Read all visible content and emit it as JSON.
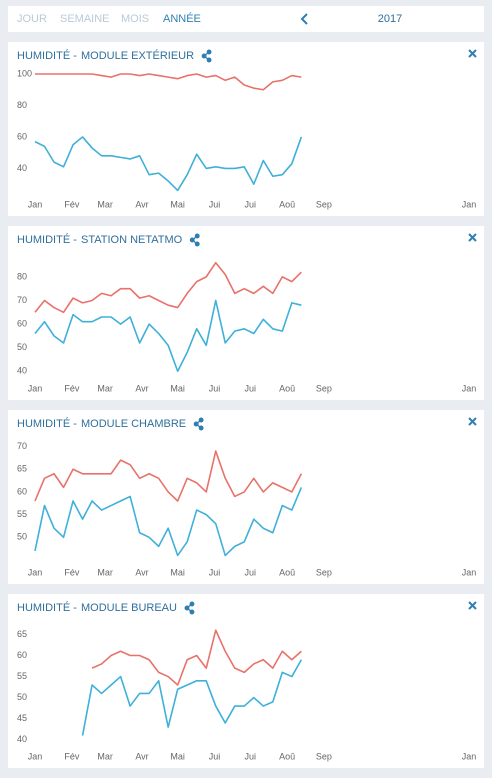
{
  "header": {
    "tabs": [
      "JOUR",
      "SEMAINE",
      "MOIS",
      "ANNÉE"
    ],
    "active_tab": 3,
    "year": "2017"
  },
  "chart_data": [
    {
      "type": "line",
      "title": "HUMIDITÉ -",
      "subtitle": "MODULE EXTÉRIEUR",
      "x": [
        0,
        8,
        16,
        24,
        32,
        40,
        48,
        56,
        64,
        72,
        80,
        88,
        96,
        104,
        112,
        120,
        128,
        136,
        144,
        152,
        160,
        168,
        176,
        184,
        192,
        200,
        208,
        216,
        224
      ],
      "xlim": [
        0,
        365
      ],
      "xticks": [
        {
          "value": 0,
          "label": "Jan"
        },
        {
          "value": 31,
          "label": "Fév"
        },
        {
          "value": 59,
          "label": "Mar"
        },
        {
          "value": 90,
          "label": "Avr"
        },
        {
          "value": 120,
          "label": "Mai"
        },
        {
          "value": 151,
          "label": "Jui"
        },
        {
          "value": 181,
          "label": "Jui"
        },
        {
          "value": 212,
          "label": "Aoû"
        },
        {
          "value": 243,
          "label": "Sep"
        },
        {
          "value": 365,
          "label": "Jan"
        }
      ],
      "ylim": [
        25,
        100
      ],
      "yticks": [
        40,
        60,
        80,
        100
      ],
      "series": [
        {
          "color": "#e8726a",
          "values": [
            100,
            100,
            100,
            100,
            100,
            100,
            100,
            99,
            98,
            100,
            100,
            99,
            100,
            99,
            98,
            97,
            99,
            100,
            98,
            99,
            96,
            98,
            93,
            91,
            90,
            95,
            96,
            99,
            98
          ]
        },
        {
          "color": "#3fb0d9",
          "values": [
            57,
            54,
            44,
            41,
            55,
            60,
            53,
            48,
            48,
            47,
            46,
            48,
            36,
            37,
            32,
            26,
            36,
            49,
            40,
            41,
            40,
            40,
            41,
            30,
            45,
            35,
            36,
            43,
            60
          ]
        }
      ]
    },
    {
      "type": "line",
      "title": "HUMIDITÉ -",
      "subtitle": "STATION NETATMO",
      "x": [
        0,
        8,
        16,
        24,
        32,
        40,
        48,
        56,
        64,
        72,
        80,
        88,
        96,
        104,
        112,
        120,
        128,
        136,
        144,
        152,
        160,
        168,
        176,
        184,
        192,
        200,
        208,
        216,
        224
      ],
      "xlim": [
        0,
        365
      ],
      "xticks": [
        {
          "value": 0,
          "label": "Jan"
        },
        {
          "value": 31,
          "label": "Fév"
        },
        {
          "value": 59,
          "label": "Mar"
        },
        {
          "value": 90,
          "label": "Avr"
        },
        {
          "value": 120,
          "label": "Mai"
        },
        {
          "value": 151,
          "label": "Jui"
        },
        {
          "value": 181,
          "label": "Jui"
        },
        {
          "value": 212,
          "label": "Aoû"
        },
        {
          "value": 243,
          "label": "Sep"
        },
        {
          "value": 365,
          "label": "Jan"
        }
      ],
      "ylim": [
        38,
        88
      ],
      "yticks": [
        40,
        50,
        60,
        70,
        80
      ],
      "series": [
        {
          "color": "#e8726a",
          "values": [
            65,
            70,
            67,
            65,
            71,
            69,
            70,
            73,
            72,
            75,
            75,
            71,
            72,
            70,
            68,
            67,
            73,
            78,
            80,
            86,
            81,
            73,
            75,
            73,
            76,
            73,
            80,
            78,
            82
          ]
        },
        {
          "color": "#3fb0d9",
          "values": [
            56,
            61,
            55,
            52,
            64,
            61,
            61,
            63,
            63,
            60,
            63,
            52,
            60,
            56,
            51,
            40,
            48,
            58,
            51,
            70,
            52,
            57,
            58,
            56,
            62,
            58,
            57,
            69,
            68
          ]
        }
      ]
    },
    {
      "type": "line",
      "title": "HUMIDITÉ -",
      "subtitle": "MODULE CHAMBRE",
      "x": [
        0,
        8,
        16,
        24,
        32,
        40,
        48,
        56,
        64,
        72,
        80,
        88,
        96,
        104,
        112,
        120,
        128,
        136,
        144,
        152,
        160,
        168,
        176,
        184,
        192,
        200,
        208,
        216,
        224
      ],
      "xlim": [
        0,
        365
      ],
      "xticks": [
        {
          "value": 0,
          "label": "Jan"
        },
        {
          "value": 31,
          "label": "Fév"
        },
        {
          "value": 59,
          "label": "Mar"
        },
        {
          "value": 90,
          "label": "Avr"
        },
        {
          "value": 120,
          "label": "Mai"
        },
        {
          "value": 151,
          "label": "Jui"
        },
        {
          "value": 181,
          "label": "Jui"
        },
        {
          "value": 212,
          "label": "Aoû"
        },
        {
          "value": 243,
          "label": "Sep"
        },
        {
          "value": 365,
          "label": "Jan"
        }
      ],
      "ylim": [
        45,
        71
      ],
      "yticks": [
        50,
        55,
        60,
        65,
        70
      ],
      "series": [
        {
          "color": "#e8726a",
          "values": [
            58,
            63,
            64,
            61,
            65,
            64,
            64,
            64,
            64,
            67,
            66,
            63,
            64,
            63,
            60,
            58,
            63,
            62,
            60,
            69,
            63,
            59,
            60,
            63,
            60,
            62,
            61,
            60,
            64
          ]
        },
        {
          "color": "#3fb0d9",
          "values": [
            47,
            57,
            52,
            50,
            58,
            54,
            58,
            56,
            57,
            58,
            59,
            51,
            50,
            48,
            52,
            46,
            49,
            56,
            55,
            53,
            46,
            48,
            49,
            54,
            52,
            51,
            57,
            56,
            61
          ]
        }
      ]
    },
    {
      "type": "line",
      "title": "HUMIDITÉ -",
      "subtitle": "MODULE BUREAU",
      "x": [
        0,
        8,
        16,
        24,
        32,
        40,
        48,
        56,
        64,
        72,
        80,
        88,
        96,
        104,
        112,
        120,
        128,
        136,
        144,
        152,
        160,
        168,
        176,
        184,
        192,
        200,
        208,
        216,
        224
      ],
      "xlim": [
        0,
        365
      ],
      "xticks": [
        {
          "value": 0,
          "label": "Jan"
        },
        {
          "value": 31,
          "label": "Fév"
        },
        {
          "value": 59,
          "label": "Mar"
        },
        {
          "value": 90,
          "label": "Avr"
        },
        {
          "value": 120,
          "label": "Mai"
        },
        {
          "value": 151,
          "label": "Jui"
        },
        {
          "value": 181,
          "label": "Jui"
        },
        {
          "value": 212,
          "label": "Aoû"
        },
        {
          "value": 243,
          "label": "Sep"
        },
        {
          "value": 365,
          "label": "Jan"
        }
      ],
      "ylim": [
        39,
        67
      ],
      "yticks": [
        40,
        45,
        50,
        55,
        60,
        65
      ],
      "series": [
        {
          "color": "#e8726a",
          "values": [
            null,
            null,
            null,
            null,
            null,
            null,
            57,
            58,
            60,
            61,
            60,
            60,
            59,
            56,
            55,
            53,
            59,
            60,
            57,
            66,
            61,
            57,
            56,
            58,
            59,
            57,
            61,
            59,
            61
          ]
        },
        {
          "color": "#3fb0d9",
          "values": [
            null,
            null,
            null,
            null,
            null,
            41,
            53,
            51,
            53,
            55,
            48,
            51,
            51,
            54,
            43,
            52,
            53,
            54,
            54,
            48,
            44,
            48,
            48,
            50,
            48,
            49,
            56,
            55,
            59
          ]
        }
      ]
    }
  ]
}
